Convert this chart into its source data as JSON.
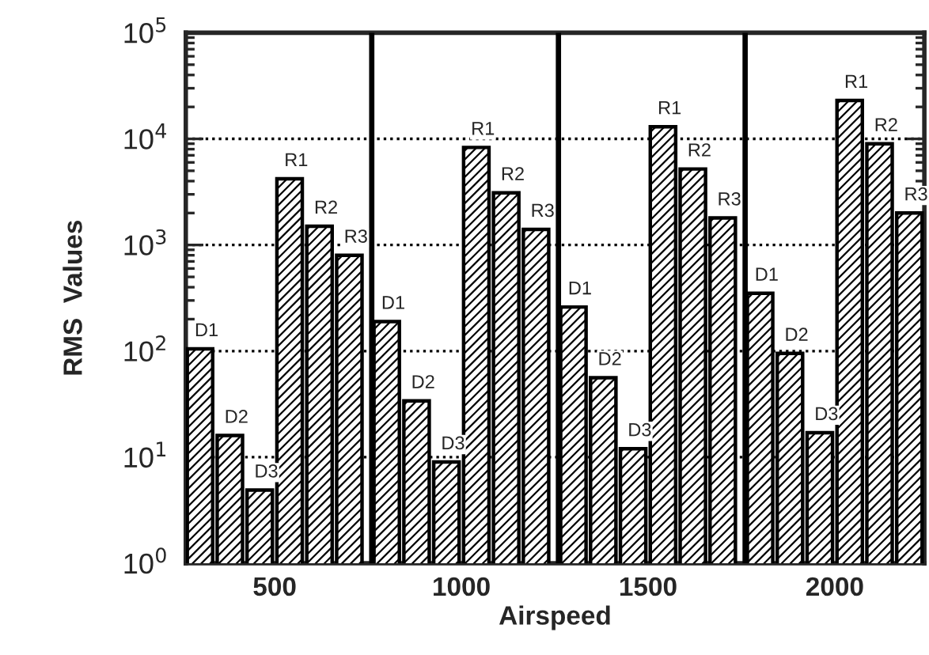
{
  "chart_data": {
    "type": "bar",
    "xlabel": "Airspeed",
    "ylabel": "RMS  Values",
    "series": [
      {
        "name": "D1",
        "color": "#000000",
        "x": [
          300,
          800,
          1300,
          1800
        ],
        "values": [
          105,
          190,
          260,
          350
        ]
      },
      {
        "name": "D2",
        "color": "#000000",
        "x": [
          380,
          880,
          1380,
          1880
        ],
        "values": [
          16,
          34,
          56,
          95
        ]
      },
      {
        "name": "D3",
        "color": "#000000",
        "x": [
          460,
          960,
          1460,
          1960
        ],
        "values": [
          4.9,
          9,
          12,
          17
        ]
      },
      {
        "name": "R1",
        "color": "#000000",
        "x": [
          540,
          1040,
          1540,
          2040
        ],
        "values": [
          4200,
          8300,
          13000,
          23000
        ]
      },
      {
        "name": "R2",
        "color": "#000000",
        "x": [
          620,
          1120,
          1620,
          2120
        ],
        "values": [
          1500,
          3100,
          5200,
          9000
        ]
      },
      {
        "name": "R3",
        "color": "#000000",
        "x": [
          700,
          1200,
          1700,
          2200
        ],
        "values": [
          800,
          1400,
          1800,
          2000
        ]
      }
    ],
    "log": "y",
    "xlim": [
      262,
      2240
    ],
    "xticks": [
      500,
      1000,
      1500,
      2000
    ],
    "ylim": [
      1,
      100000
    ],
    "yticks": [
      {
        "value": 1,
        "label": "10$^{0}$"
      },
      {
        "value": 10,
        "label": "10$^{1}$"
      },
      {
        "value": 100,
        "label": "10$^{2}$"
      },
      {
        "value": 1000,
        "label": "10$^{3}$"
      },
      {
        "value": 10000,
        "label": "10$^{4}$"
      },
      {
        "value": 100000,
        "label": "10$^{5}$"
      }
    ],
    "grid": "y",
    "ref_lines": [
      {
        "axis": "x",
        "value": 760,
        "color": "#000000"
      },
      {
        "axis": "x",
        "value": 1260,
        "color": "#000000"
      },
      {
        "axis": "x",
        "value": 1760,
        "color": "#000000"
      }
    ]
  }
}
